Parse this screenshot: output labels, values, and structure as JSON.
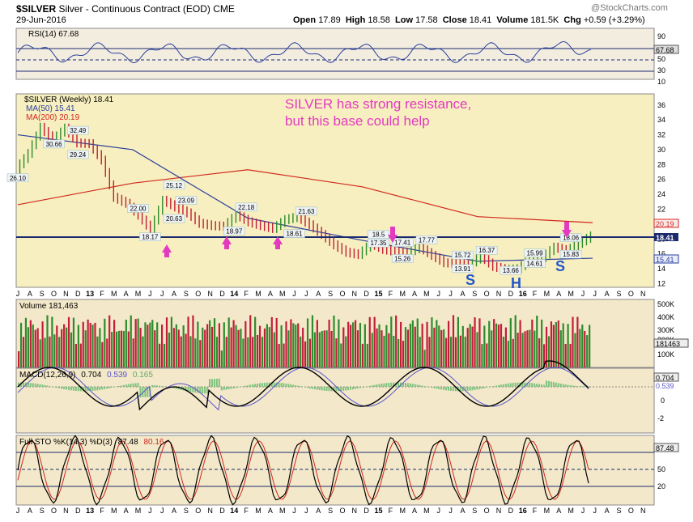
{
  "header": {
    "symbol": "$SILVER",
    "name": "Silver - Continuous Contract (EOD)",
    "exchange": "CME",
    "date": "29-Jun-2016",
    "watermark": "@StockCharts.com",
    "open_label": "Open",
    "open": "17.89",
    "high_label": "High",
    "high": "18.58",
    "low_label": "Low",
    "low": "17.58",
    "close_label": "Close",
    "close": "18.41",
    "volume_label": "Volume",
    "volume": "181.5K",
    "chg_label": "Chg",
    "chg": "+0.59 (+3.29%)"
  },
  "colors": {
    "price_bg": "#f7efbf",
    "panel_bg": "#f3e8c9",
    "up": "#2e8b2e",
    "down": "#c21e3a",
    "ma50": "#2a3f9c",
    "ma200": "#d0281e",
    "annotation": "#e33ac0",
    "hs_label": "#2255cc",
    "resistance": "#1b2a6e"
  },
  "rsi": {
    "label": "RSI(14) 67.68",
    "value_tag": "67.68",
    "ticks": [
      "90",
      "70",
      "50",
      "30",
      "10"
    ]
  },
  "price_panel": {
    "title": "$SILVER (Weekly) 18.41",
    "ma50_label": "MA(50) 15.41",
    "ma200_label": "MA(200) 20.19",
    "tags": {
      "ma200": "20.19",
      "close": "18.41",
      "ma50": "15.41"
    },
    "ticks": [
      "36",
      "34",
      "32",
      "30",
      "28",
      "26",
      "24",
      "22",
      "20",
      "18",
      "16",
      "14",
      "12"
    ],
    "annotation_line1": "SILVER has strong resistance,",
    "annotation_line2": "but this base could help",
    "head_shoulders": [
      "S",
      "H",
      "S"
    ]
  },
  "volume": {
    "label": "Volume 181,463",
    "value_tag": "181463",
    "ticks": [
      "500K",
      "400K",
      "300K",
      "200K",
      "100K"
    ]
  },
  "macd": {
    "label": "MACD(12,26,9)",
    "macd_value": "0.704",
    "signal_value": "0.539",
    "hist_value": "0.165",
    "tags": [
      "0.704",
      "0.539",
      "0.165"
    ],
    "ticks": [
      "0",
      "-2"
    ]
  },
  "sto": {
    "label": "Full STO %K(14,3) %D(3)",
    "k_value": "87.48",
    "d_value": "80.16",
    "value_tag": "87.48",
    "ticks": [
      "50",
      "20"
    ]
  },
  "x_axis": [
    "J",
    "A",
    "S",
    "O",
    "N",
    "D",
    "13",
    "F",
    "M",
    "A",
    "M",
    "J",
    "J",
    "A",
    "S",
    "O",
    "N",
    "D",
    "14",
    "F",
    "M",
    "A",
    "M",
    "J",
    "J",
    "A",
    "S",
    "O",
    "N",
    "D",
    "15",
    "F",
    "M",
    "A",
    "M",
    "J",
    "J",
    "A",
    "S",
    "O",
    "N",
    "D",
    "16",
    "F",
    "M",
    "A",
    "M",
    "J",
    "J",
    "A",
    "S",
    "O",
    "N"
  ],
  "chart_data": {
    "type": "line",
    "title": "$SILVER (Weekly)",
    "ylim": [
      11,
      38
    ],
    "price_points": [
      {
        "x": "Jul 2012",
        "y": 27.4
      },
      {
        "x": "Sep 2012",
        "y": 29.5
      },
      {
        "x": "Oct 2012",
        "y": 33.0
      },
      {
        "x": "Nov 2012",
        "y": 31.3
      },
      {
        "x": "Dec 2012",
        "y": 32.9
      },
      {
        "x": "Jan 2013",
        "y": 30.9
      },
      {
        "x": "Feb 2013",
        "y": 30.8
      },
      {
        "x": "Mar 2013",
        "y": 28.6
      },
      {
        "x": "Apr 2013",
        "y": 23.6
      },
      {
        "x": "May 2013",
        "y": 22.8
      },
      {
        "x": "Jun 2013",
        "y": 21.2
      },
      {
        "x": "Jul 2013",
        "y": 19.2
      },
      {
        "x": "Aug 2013",
        "y": 23.2
      },
      {
        "x": "Sep 2013",
        "y": 22.3
      },
      {
        "x": "Oct 2013",
        "y": 21.5
      },
      {
        "x": "Nov 2013",
        "y": 20.1
      },
      {
        "x": "Dec 2013",
        "y": 19.8
      },
      {
        "x": "Jan 2014",
        "y": 19.7
      },
      {
        "x": "Feb 2014",
        "y": 21.3
      },
      {
        "x": "Mar 2014",
        "y": 20.3
      },
      {
        "x": "Apr 2014",
        "y": 19.8
      },
      {
        "x": "May 2014",
        "y": 19.4
      },
      {
        "x": "Jun 2014",
        "y": 20.6
      },
      {
        "x": "Jul 2014",
        "y": 21.0
      },
      {
        "x": "Aug 2014",
        "y": 19.9
      },
      {
        "x": "Sep 2014",
        "y": 18.6
      },
      {
        "x": "Oct 2014",
        "y": 17.2
      },
      {
        "x": "Nov 2014",
        "y": 16.2
      },
      {
        "x": "Dec 2014",
        "y": 15.9
      },
      {
        "x": "Jan 2015",
        "y": 17.4
      },
      {
        "x": "Feb 2015",
        "y": 16.6
      },
      {
        "x": "Mar 2015",
        "y": 16.3
      },
      {
        "x": "Apr 2015",
        "y": 16.2
      },
      {
        "x": "May 2015",
        "y": 16.9
      },
      {
        "x": "Jun 2015",
        "y": 15.8
      },
      {
        "x": "Jul 2015",
        "y": 14.8
      },
      {
        "x": "Aug 2015",
        "y": 14.7
      },
      {
        "x": "Sep 2015",
        "y": 14.5
      },
      {
        "x": "Oct 2015",
        "y": 15.7
      },
      {
        "x": "Nov 2015",
        "y": 14.3
      },
      {
        "x": "Dec 2015",
        "y": 13.9
      },
      {
        "x": "Jan 2016",
        "y": 14.0
      },
      {
        "x": "Feb 2016",
        "y": 15.3
      },
      {
        "x": "Mar 2016",
        "y": 15.5
      },
      {
        "x": "Apr 2016",
        "y": 16.9
      },
      {
        "x": "May 2016",
        "y": 16.4
      },
      {
        "x": "Jun 2016",
        "y": 17.4
      },
      {
        "x": "Jun 2016 close",
        "y": 18.41
      }
    ],
    "labels": [
      {
        "x": "Jul 2012",
        "y": 26.1,
        "text": "26.10"
      },
      {
        "x": "Dec 2012",
        "y": 32.49,
        "text": "32.49"
      },
      {
        "x": "Oct 2012",
        "y": 30.66,
        "text": "30.66"
      },
      {
        "x": "Dec 2012",
        "y": 29.24,
        "text": "29.24"
      },
      {
        "x": "May 2013",
        "y": 22.0,
        "text": "22.00"
      },
      {
        "x": "Aug 2013",
        "y": 25.12,
        "text": "25.12"
      },
      {
        "x": "Sep 2013",
        "y": 23.09,
        "text": "23.09"
      },
      {
        "x": "Aug 2013",
        "y": 20.63,
        "text": "20.63"
      },
      {
        "x": "Jun 2013",
        "y": 18.17,
        "text": "18.17"
      },
      {
        "x": "Feb 2014",
        "y": 22.18,
        "text": "22.18"
      },
      {
        "x": "Jan 2014",
        "y": 18.97,
        "text": "18.97"
      },
      {
        "x": "Jun 2014",
        "y": 18.61,
        "text": "18.61"
      },
      {
        "x": "Jul 2014",
        "y": 21.63,
        "text": "21.63"
      },
      {
        "x": "Jan 2015",
        "y": 17.35,
        "text": "17.35"
      },
      {
        "x": "Jan 2015",
        "y": 18.5,
        "text": "18.5"
      },
      {
        "x": "Mar 2015",
        "y": 17.41,
        "text": "17.41"
      },
      {
        "x": "May 2015",
        "y": 17.77,
        "text": "17.77"
      },
      {
        "x": "Mar 2015",
        "y": 15.26,
        "text": "15.26"
      },
      {
        "x": "Aug 2015",
        "y": 15.72,
        "text": "15.72"
      },
      {
        "x": "Oct 2015",
        "y": 16.37,
        "text": "16.37"
      },
      {
        "x": "Aug 2015",
        "y": 13.91,
        "text": "13.91"
      },
      {
        "x": "Dec 2015",
        "y": 13.66,
        "text": "13.66"
      },
      {
        "x": "Feb 2016",
        "y": 15.99,
        "text": "15.99"
      },
      {
        "x": "Feb 2016",
        "y": 14.61,
        "text": "14.61"
      },
      {
        "x": "May 2016",
        "y": 18.06,
        "text": "18.06"
      },
      {
        "x": "May 2016",
        "y": 15.83,
        "text": "15.83"
      }
    ],
    "ma50": [
      {
        "x": "Jul 2012",
        "y": 32.0
      },
      {
        "x": "Jan 2013",
        "y": 30.0
      },
      {
        "x": "Jan 2014",
        "y": 20.8
      },
      {
        "x": "Jan 2015",
        "y": 17.8
      },
      {
        "x": "Jan 2016",
        "y": 15.0
      },
      {
        "x": "Jun 2016",
        "y": 15.41
      }
    ],
    "ma200": [
      {
        "x": "Jul 2012",
        "y": 22.6
      },
      {
        "x": "Jan 2013",
        "y": 25.5
      },
      {
        "x": "Jan 2014",
        "y": 27.3
      },
      {
        "x": "Jan 2015",
        "y": 25.0
      },
      {
        "x": "Jan 2016",
        "y": 21.0
      },
      {
        "x": "Jun 2016",
        "y": 20.19
      }
    ],
    "resistance_level": 18.41
  }
}
